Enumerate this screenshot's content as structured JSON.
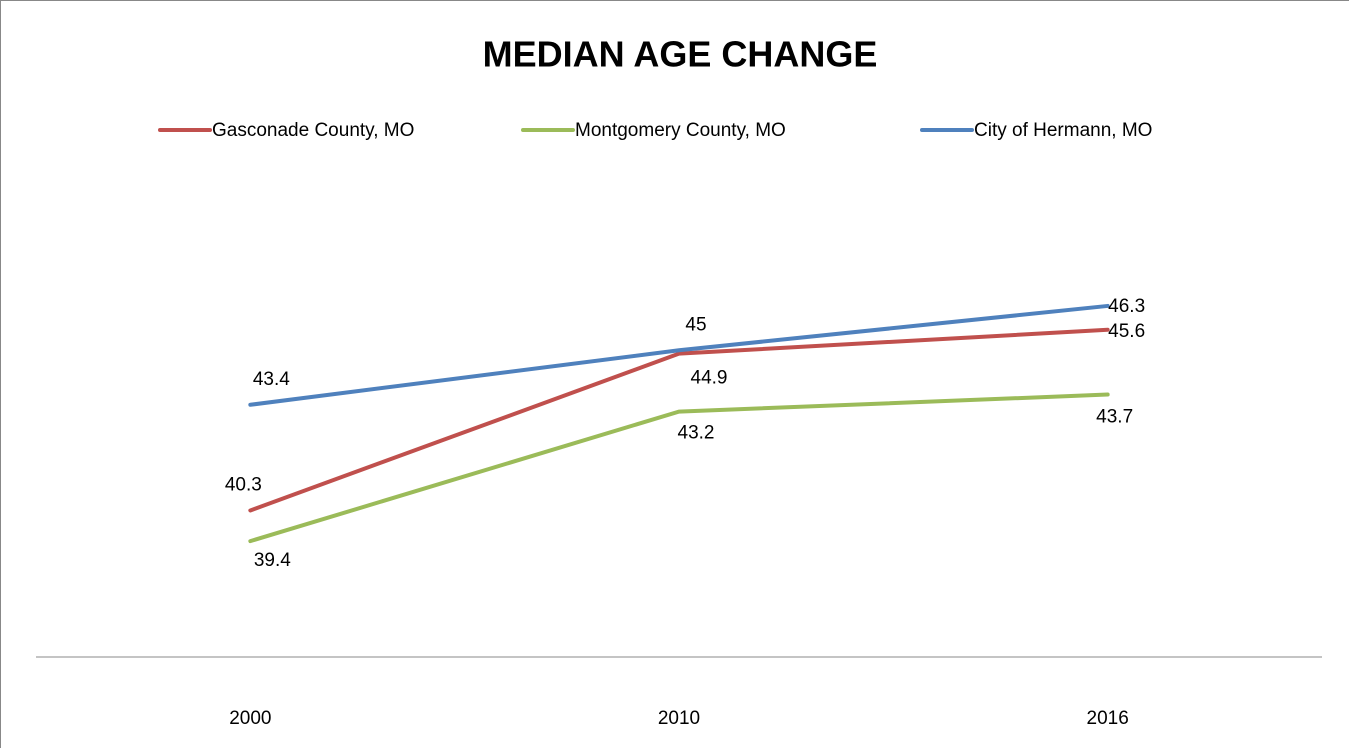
{
  "chart_data": {
    "type": "line",
    "title": "MEDIAN AGE CHANGE",
    "categories": [
      "2000",
      "2010",
      "2016"
    ],
    "series": [
      {
        "name": "Gasconade County, MO",
        "color": "#c0504d",
        "values": [
          40.3,
          44.9,
          45.6
        ]
      },
      {
        "name": "Montgomery County, MO",
        "color": "#9bbb59",
        "values": [
          39.4,
          43.2,
          43.7
        ]
      },
      {
        "name": "City of Hermann, MO",
        "color": "#4f81bd",
        "values": [
          43.4,
          45,
          46.3
        ]
      }
    ],
    "ylim": [
      36,
      48
    ],
    "legend": "top"
  }
}
